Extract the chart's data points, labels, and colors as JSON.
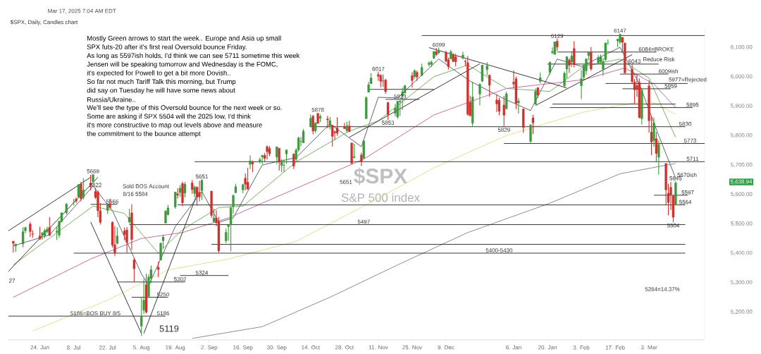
{
  "chart_data": {
    "type": "candlestick",
    "x": [
      "2024-06-13",
      "2024-06-14",
      "2024-06-17",
      "2024-06-18",
      "2024-06-20",
      "2024-06-21",
      "2024-06-24",
      "2024-06-25",
      "2024-06-26",
      "2024-06-27",
      "2024-06-28",
      "2024-07-01",
      "2024-07-02",
      "2024-07-03",
      "2024-07-05",
      "2024-07-08",
      "2024-07-09",
      "2024-07-10",
      "2024-07-11",
      "2024-07-12",
      "2024-07-15",
      "2024-07-16",
      "2024-07-17",
      "2024-07-18",
      "2024-07-19",
      "2024-07-22",
      "2024-07-23",
      "2024-07-24",
      "2024-07-25",
      "2024-07-26",
      "2024-07-29",
      "2024-07-30",
      "2024-07-31",
      "2024-08-01",
      "2024-08-02",
      "2024-08-05",
      "2024-08-06",
      "2024-08-07",
      "2024-08-08",
      "2024-08-09",
      "2024-08-12",
      "2024-08-13",
      "2024-08-14",
      "2024-08-15",
      "2024-08-16",
      "2024-08-19",
      "2024-08-20",
      "2024-08-21",
      "2024-08-22",
      "2024-08-23",
      "2024-08-26",
      "2024-08-27",
      "2024-08-28",
      "2024-08-29",
      "2024-08-30",
      "2024-09-03",
      "2024-09-04",
      "2024-09-05",
      "2024-09-06",
      "2024-09-09",
      "2024-09-10",
      "2024-09-11",
      "2024-09-12",
      "2024-09-13",
      "2024-09-16",
      "2024-09-17",
      "2024-09-18",
      "2024-09-19",
      "2024-09-20",
      "2024-09-23",
      "2024-09-24",
      "2024-09-25",
      "2024-09-26",
      "2024-09-27",
      "2024-09-30",
      "2024-10-01",
      "2024-10-02",
      "2024-10-03",
      "2024-10-04",
      "2024-10-07",
      "2024-10-08",
      "2024-10-09",
      "2024-10-10",
      "2024-10-11",
      "2024-10-14",
      "2024-10-15",
      "2024-10-16",
      "2024-10-17",
      "2024-10-18",
      "2024-10-21",
      "2024-10-22",
      "2024-10-23",
      "2024-10-24",
      "2024-10-25",
      "2024-10-28",
      "2024-10-29",
      "2024-10-30",
      "2024-10-31",
      "2024-11-01",
      "2024-11-04",
      "2024-11-05",
      "2024-11-06",
      "2024-11-07",
      "2024-11-08",
      "2024-11-11",
      "2024-11-12",
      "2024-11-13",
      "2024-11-14",
      "2024-11-15",
      "2024-11-18",
      "2024-11-19",
      "2024-11-20",
      "2024-11-21",
      "2024-11-22",
      "2024-11-25",
      "2024-11-26",
      "2024-11-27",
      "2024-11-29",
      "2024-12-02",
      "2024-12-03",
      "2024-12-04",
      "2024-12-05",
      "2024-12-06",
      "2024-12-09",
      "2024-12-10",
      "2024-12-11",
      "2024-12-12",
      "2024-12-13",
      "2024-12-16",
      "2024-12-17",
      "2024-12-18",
      "2024-12-19",
      "2024-12-20",
      "2024-12-23",
      "2024-12-24",
      "2024-12-26",
      "2024-12-27",
      "2024-12-30",
      "2024-12-31",
      "2025-01-02",
      "2025-01-03",
      "2025-01-06",
      "2025-01-07",
      "2025-01-08",
      "2025-01-10",
      "2025-01-13",
      "2025-01-14",
      "2025-01-15",
      "2025-01-16",
      "2025-01-17",
      "2025-01-21",
      "2025-01-22",
      "2025-01-23",
      "2025-01-24",
      "2025-01-27",
      "2025-01-28",
      "2025-01-29",
      "2025-01-30",
      "2025-01-31",
      "2025-02-03",
      "2025-02-04",
      "2025-02-05",
      "2025-02-06",
      "2025-02-07",
      "2025-02-10",
      "2025-02-11",
      "2025-02-12",
      "2025-02-13",
      "2025-02-14",
      "2025-02-18",
      "2025-02-19",
      "2025-02-20",
      "2025-02-21",
      "2025-02-24",
      "2025-02-25",
      "2025-02-26",
      "2025-02-27",
      "2025-02-28",
      "2025-03-03",
      "2025-03-04",
      "2025-03-05",
      "2025-03-06",
      "2025-03-07",
      "2025-03-10",
      "2025-03-11",
      "2025-03-12",
      "2025-03-13",
      "2025-03-14"
    ],
    "ohlc": [
      [
        5441,
        5441,
        5402,
        5433
      ],
      [
        5424,
        5432,
        5404,
        5431
      ],
      [
        5431,
        5488,
        5420,
        5473
      ],
      [
        5476,
        5490,
        5468,
        5487
      ],
      [
        5499,
        5506,
        5455,
        5473
      ],
      [
        5466,
        5478,
        5452,
        5464
      ],
      [
        5459,
        5490,
        5447,
        5447
      ],
      [
        5461,
        5472,
        5446,
        5469
      ],
      [
        5460,
        5483,
        5451,
        5477
      ],
      [
        5473,
        5490,
        5468,
        5482
      ],
      [
        5488,
        5523,
        5459,
        5460
      ],
      [
        5471,
        5489,
        5445,
        5475
      ],
      [
        5461,
        5510,
        5452,
        5509
      ],
      [
        5507,
        5539,
        5507,
        5537
      ],
      [
        5537,
        5571,
        5531,
        5567
      ],
      [
        5572,
        5584,
        5562,
        5572
      ],
      [
        5584,
        5590,
        5571,
        5577
      ],
      [
        5591,
        5635,
        5587,
        5633
      ],
      [
        5635,
        5642,
        5576,
        5585
      ],
      [
        5590,
        5655,
        5583,
        5615
      ],
      [
        5638,
        5666,
        5614,
        5631
      ],
      [
        5644,
        5669,
        5639,
        5667
      ],
      [
        5610,
        5622,
        5584,
        5589
      ],
      [
        5608,
        5614,
        5522,
        5544
      ],
      [
        5544,
        5570,
        5497,
        5505
      ],
      [
        5545,
        5567,
        5533,
        5564
      ],
      [
        5566,
        5585,
        5550,
        5555
      ],
      [
        5505,
        5508,
        5419,
        5427
      ],
      [
        5429,
        5491,
        5390,
        5400
      ],
      [
        5433,
        5488,
        5430,
        5459
      ],
      [
        5476,
        5487,
        5444,
        5463
      ],
      [
        5479,
        5489,
        5401,
        5436
      ],
      [
        5506,
        5551,
        5501,
        5522
      ],
      [
        5537,
        5566,
        5411,
        5446
      ],
      [
        5377,
        5383,
        5302,
        5347
      ],
      [
        5152,
        5250,
        5119,
        5186
      ],
      [
        5206,
        5312,
        5193,
        5240
      ],
      [
        5293,
        5330,
        5195,
        5199
      ],
      [
        5253,
        5328,
        5250,
        5319
      ],
      [
        5314,
        5358,
        5298,
        5344
      ],
      [
        5352,
        5371,
        5318,
        5344
      ],
      [
        5376,
        5436,
        5376,
        5434
      ],
      [
        5442,
        5463,
        5417,
        5455
      ],
      [
        5502,
        5546,
        5502,
        5543
      ],
      [
        5531,
        5564,
        5528,
        5554
      ],
      [
        5557,
        5608,
        5551,
        5608
      ],
      [
        5602,
        5621,
        5585,
        5597
      ],
      [
        5606,
        5632,
        5591,
        5621
      ],
      [
        5637,
        5643,
        5560,
        5571
      ],
      [
        5604,
        5642,
        5590,
        5635
      ],
      [
        5639,
        5649,
        5602,
        5616
      ],
      [
        5603,
        5631,
        5590,
        5625
      ],
      [
        5624,
        5628,
        5561,
        5592
      ],
      [
        5607,
        5646,
        5576,
        5591
      ],
      [
        5612,
        5651,
        5581,
        5648
      ],
      [
        5611,
        5612,
        5520,
        5528
      ],
      [
        5507,
        5551,
        5503,
        5520
      ],
      [
        5520,
        5546,
        5492,
        5503
      ],
      [
        5507,
        5523,
        5402,
        5408
      ],
      [
        5442,
        5484,
        5434,
        5471
      ],
      [
        5490,
        5497,
        5442,
        5496
      ],
      [
        5496,
        5560,
        5406,
        5554
      ],
      [
        5558,
        5600,
        5535,
        5596
      ],
      [
        5605,
        5636,
        5605,
        5626
      ],
      [
        5615,
        5636,
        5604,
        5633
      ],
      [
        5655,
        5671,
        5614,
        5634
      ],
      [
        5641,
        5690,
        5615,
        5618
      ],
      [
        5702,
        5733,
        5686,
        5714
      ],
      [
        5709,
        5715,
        5675,
        5703
      ],
      [
        5712,
        5725,
        5705,
        5718
      ],
      [
        5727,
        5735,
        5703,
        5732
      ],
      [
        5733,
        5741,
        5712,
        5722
      ],
      [
        5762,
        5767,
        5719,
        5745
      ],
      [
        5756,
        5764,
        5730,
        5738
      ],
      [
        5727,
        5763,
        5703,
        5762
      ],
      [
        5757,
        5757,
        5681,
        5709
      ],
      [
        5698,
        5720,
        5675,
        5709
      ],
      [
        5698,
        5718,
        5675,
        5699
      ],
      [
        5737,
        5753,
        5704,
        5751
      ],
      [
        5737,
        5740,
        5686,
        5696
      ],
      [
        5719,
        5757,
        5713,
        5751
      ],
      [
        5751,
        5796,
        5745,
        5792
      ],
      [
        5779,
        5795,
        5764,
        5780
      ],
      [
        5775,
        5822,
        5775,
        5815
      ],
      [
        5829,
        5871,
        5829,
        5859
      ],
      [
        5866,
        5870,
        5804,
        5815
      ],
      [
        5816,
        5846,
        5809,
        5842
      ],
      [
        5875,
        5878,
        5840,
        5841
      ],
      [
        5859,
        5872,
        5846,
        5865
      ],
      [
        5857,
        5867,
        5825,
        5853
      ],
      [
        5833,
        5863,
        5821,
        5851
      ],
      [
        5835,
        5835,
        5763,
        5797
      ],
      [
        5813,
        5817,
        5784,
        5809
      ],
      [
        5826,
        5862,
        5799,
        5808
      ],
      [
        5830,
        5843,
        5822,
        5823
      ],
      [
        5816,
        5847,
        5810,
        5833
      ],
      [
        5833,
        5850,
        5813,
        5813
      ],
      [
        5775,
        5776,
        5703,
        5705
      ],
      [
        5724,
        5772,
        5723,
        5728
      ],
      [
        5734,
        5742,
        5696,
        5712
      ],
      [
        5722,
        5783,
        5722,
        5782
      ],
      [
        5857,
        5933,
        5857,
        5929
      ],
      [
        5947,
        5983,
        5947,
        5973
      ],
      [
        5976,
        6012,
        5976,
        5996
      ],
      [
        6008,
        6017,
        5986,
        6001
      ],
      [
        6004,
        6009,
        5964,
        5984
      ],
      [
        5986,
        6008,
        5965,
        5985
      ],
      [
        5989,
        5993,
        5942,
        5949
      ],
      [
        5912,
        5915,
        5853,
        5871
      ],
      [
        5876,
        5908,
        5866,
        5894
      ],
      [
        5863,
        5917,
        5857,
        5917
      ],
      [
        5914,
        5921,
        5867,
        5917
      ],
      [
        5934,
        5963,
        5887,
        5949
      ],
      [
        5944,
        5973,
        5944,
        5969
      ],
      [
        6004,
        6015,
        5963,
        5987
      ],
      [
        6000,
        6025,
        5993,
        6021
      ],
      [
        6015,
        6021,
        5986,
        5999
      ],
      [
        6004,
        6044,
        6003,
        6032
      ],
      [
        6041,
        6053,
        6035,
        6047
      ],
      [
        6042,
        6055,
        6033,
        6050
      ],
      [
        6063,
        6087,
        6060,
        6086
      ],
      [
        6086,
        6098,
        6070,
        6075
      ],
      [
        6081,
        6099,
        6077,
        6090
      ],
      [
        6083,
        6089,
        6048,
        6053
      ],
      [
        6058,
        6065,
        6024,
        6034
      ],
      [
        6060,
        6092,
        6060,
        6085
      ],
      [
        6074,
        6080,
        6051,
        6051
      ],
      [
        6068,
        6078,
        6035,
        6051
      ],
      [
        6063,
        6085,
        6059,
        6074
      ],
      [
        6053,
        6058,
        6036,
        6051
      ],
      [
        6048,
        6071,
        5867,
        5872
      ],
      [
        5913,
        5936,
        5866,
        5867
      ],
      [
        5842,
        5982,
        5832,
        5931
      ],
      [
        5941,
        5978,
        5903,
        5974
      ],
      [
        5985,
        6040,
        5981,
        6040
      ],
      [
        6024,
        6050,
        6004,
        6037
      ],
      [
        6006,
        6006,
        5932,
        5971
      ],
      [
        5921,
        5941,
        5880,
        5907
      ],
      [
        5920,
        5929,
        5869,
        5882
      ],
      [
        5904,
        5935,
        5829,
        5869
      ],
      [
        5891,
        5949,
        5888,
        5942
      ],
      [
        5982,
        6021,
        5961,
        5975
      ],
      [
        5993,
        6000,
        5890,
        5909
      ],
      [
        5911,
        5927,
        5875,
        5918
      ],
      [
        5891,
        5891,
        5809,
        5827
      ],
      [
        5780,
        5838,
        5773,
        5836
      ],
      [
        5860,
        5870,
        5805,
        5843
      ],
      [
        5906,
        5960,
        5906,
        5950
      ],
      [
        5963,
        5964,
        5928,
        5937
      ],
      [
        5984,
        6014,
        5978,
        5997
      ],
      [
        6014,
        6052,
        6007,
        6049
      ],
      [
        6082,
        6100,
        6076,
        6086
      ],
      [
        6076,
        6119,
        6075,
        6119
      ],
      [
        6121,
        6129,
        6088,
        6101
      ],
      [
        5969,
        6018,
        5962,
        6012
      ],
      [
        6026,
        6070,
        5994,
        6068
      ],
      [
        6057,
        6063,
        6013,
        6039
      ],
      [
        6050,
        6087,
        6033,
        6071
      ],
      [
        6096,
        6121,
        6031,
        6041
      ],
      [
        5969,
        6022,
        5924,
        5994
      ],
      [
        5998,
        6042,
        5990,
        6037
      ],
      [
        6020,
        6062,
        6007,
        6061
      ],
      [
        6072,
        6084,
        6055,
        6083
      ],
      [
        6083,
        6101,
        6020,
        6026
      ],
      [
        6047,
        6073,
        6044,
        6066
      ],
      [
        6050,
        6076,
        6042,
        6068
      ],
      [
        6025,
        6063,
        6003,
        6052
      ],
      [
        6058,
        6116,
        6052,
        6115
      ],
      [
        6115,
        6127,
        6108,
        6115
      ],
      [
        6122,
        6128,
        6100,
        6128
      ],
      [
        6117,
        6147,
        6111,
        6144
      ],
      [
        6134,
        6134,
        6084,
        6117
      ],
      [
        6115,
        6115,
        6009,
        6013
      ],
      [
        6026,
        6043,
        5977,
        5983
      ],
      [
        5982,
        5992,
        5909,
        5955
      ],
      [
        5970,
        6009,
        5932,
        5956
      ],
      [
        5981,
        5994,
        5858,
        5861
      ],
      [
        5857,
        5959,
        5837,
        5955
      ],
      [
        5969,
        5987,
        5810,
        5850
      ],
      [
        5812,
        5866,
        5733,
        5778
      ],
      [
        5782,
        5861,
        5762,
        5843
      ],
      [
        5789,
        5812,
        5711,
        5739
      ],
      [
        5726,
        5783,
        5667,
        5770
      ],
      [
        5705,
        5706,
        5565,
        5615
      ],
      [
        5604,
        5636,
        5529,
        5572
      ],
      [
        5624,
        5642,
        5547,
        5599
      ],
      [
        5595,
        5597,
        5504,
        5522
      ],
      [
        5563,
        5645,
        5563,
        5639
      ]
    ],
    "xlim": [
      "2024-06-11",
      "2025-03-26"
    ],
    "xticks": [
      {
        "value": "2024-06-24",
        "label": "24. Jun"
      },
      {
        "value": "2024-07-08",
        "label": "8. Jul"
      },
      {
        "value": "2024-07-22",
        "label": "22. Jul"
      },
      {
        "value": "2024-08-05",
        "label": "5. Aug"
      },
      {
        "value": "2024-08-19",
        "label": "19. Aug"
      },
      {
        "value": "2024-09-02",
        "label": "2. Sep"
      },
      {
        "value": "2024-09-16",
        "label": "16. Sep"
      },
      {
        "value": "2024-09-30",
        "label": "30. Sep"
      },
      {
        "value": "2024-10-14",
        "label": "14. Oct"
      },
      {
        "value": "2024-10-28",
        "label": "28. Oct"
      },
      {
        "value": "2024-11-11",
        "label": "11. Nov"
      },
      {
        "value": "2024-11-25",
        "label": "25. Nov"
      },
      {
        "value": "2024-12-09",
        "label": "9. Dec"
      },
      {
        "value": "2025-01-06",
        "label": "6. Jan"
      },
      {
        "value": "2025-01-20",
        "label": "20. Jan"
      },
      {
        "value": "2025-02-03",
        "label": "3. Feb"
      },
      {
        "value": "2025-02-17",
        "label": "17. Feb"
      },
      {
        "value": "2025-03-03",
        "label": "3. Mar"
      }
    ],
    "ylim": [
      5105,
      6165
    ],
    "yticks": [
      {
        "value": 5200,
        "label": "5,200.00"
      },
      {
        "value": 5300,
        "label": "5,300.00"
      },
      {
        "value": 5400,
        "label": "5,400.00"
      },
      {
        "value": 5500,
        "label": "5,500.00"
      },
      {
        "value": 5600,
        "label": "5,600.00"
      },
      {
        "value": 5700,
        "label": "5,700.00"
      },
      {
        "value": 5800,
        "label": "5,800.00"
      },
      {
        "value": 5900,
        "label": "5,900.00"
      },
      {
        "value": 6000,
        "label": "6,000.00"
      },
      {
        "value": 6100,
        "label": "6,100.00"
      }
    ],
    "series": [
      {
        "type": "line",
        "color": "#4d5160",
        "x": [
          "2024-06-13",
          "2024-06-28",
          "2024-07-16",
          "2024-07-24",
          "2024-08-05",
          "2024-08-08",
          "2024-08-19",
          "2024-08-30",
          "2024-09-06",
          "2024-09-12",
          "2024-09-24",
          "2024-10-08",
          "2024-10-22",
          "2024-11-04",
          "2024-11-11",
          "2024-11-19",
          "2024-12-06",
          "2024-12-19",
          "2025-01-02",
          "2025-01-13",
          "2025-01-24",
          "2025-02-03",
          "2025-02-19",
          "2025-02-27",
          "2025-03-07",
          "2025-03-14"
        ],
        "values": [
          5425,
          5462,
          5628,
          5545,
          5330,
          5290,
          5490,
          5610,
          5505,
          5520,
          5700,
          5725,
          5840,
          5762,
          5930,
          5928,
          6060,
          5985,
          5925,
          5885,
          6060,
          6035,
          6100,
          5975,
          5800,
          5655
        ]
      },
      {
        "type": "line",
        "color": "#6aa84f",
        "x": [
          "2024-06-13",
          "2024-07-16",
          "2024-07-29",
          "2024-08-12",
          "2024-08-22",
          "2024-09-06",
          "2024-09-16",
          "2024-10-08",
          "2024-10-30",
          "2024-11-11",
          "2024-12-04",
          "2024-12-18",
          "2025-01-03",
          "2025-01-21",
          "2025-02-04",
          "2025-02-19",
          "2025-03-03",
          "2025-03-14"
        ],
        "values": [
          5360,
          5560,
          5535,
          5400,
          5480,
          5555,
          5560,
          5710,
          5815,
          5850,
          6000,
          6040,
          5960,
          5950,
          6035,
          6060,
          5995,
          5794
        ]
      },
      {
        "type": "line",
        "color": "#c45c9a",
        "x": [
          "2024-06-13",
          "2024-07-15",
          "2024-08-05",
          "2024-08-22",
          "2024-09-10",
          "2024-10-08",
          "2024-11-05",
          "2024-12-04",
          "2025-01-03",
          "2025-02-04",
          "2025-02-21",
          "2025-03-05",
          "2025-03-14"
        ],
        "values": [
          5250,
          5380,
          5450,
          5470,
          5520,
          5620,
          5720,
          5870,
          5960,
          5990,
          6030,
          5975,
          5895
        ]
      },
      {
        "type": "line",
        "color": "#e3d98a",
        "x": [
          "2024-06-21",
          "2024-07-22",
          "2024-08-16",
          "2024-09-10",
          "2024-10-08",
          "2024-11-05",
          "2024-12-04",
          "2025-01-03",
          "2025-02-04",
          "2025-03-03",
          "2025-03-14"
        ],
        "values": [
          5135,
          5240,
          5343,
          5380,
          5440,
          5560,
          5690,
          5800,
          5880,
          5920,
          5872
        ]
      },
      {
        "type": "line",
        "color": "#808080",
        "x": [
          "2024-08-26",
          "2024-09-24",
          "2024-10-22",
          "2024-11-19",
          "2024-12-18",
          "2025-01-21",
          "2025-02-19",
          "2025-03-14"
        ],
        "values": [
          5110,
          5150,
          5250,
          5360,
          5470,
          5570,
          5670,
          5705
        ]
      },
      {
        "type": "line",
        "color": "#222222",
        "x": [
          "2024-06-11",
          "2024-07-15"
        ],
        "values": [
          5476,
          5658
        ]
      },
      {
        "type": "line",
        "color": "#222222",
        "x": [
          "2024-06-11",
          "2024-07-18"
        ],
        "values": [
          5338,
          5658
        ]
      },
      {
        "type": "line",
        "color": "#222222",
        "x": [
          "2024-07-15",
          "2024-08-05"
        ],
        "values": [
          5506,
          5127
        ]
      },
      {
        "type": "line",
        "color": "#222222",
        "x": [
          "2024-08-06",
          "2024-08-28"
        ],
        "values": [
          5127,
          5600
        ]
      },
      {
        "type": "line",
        "color": "#222222",
        "x": [
          "2024-06-11",
          "2024-08-15"
        ],
        "values": [
          5186,
          5186
        ]
      },
      {
        "type": "line",
        "color": "#222222",
        "x": [
          "2024-08-01",
          "2024-08-16"
        ],
        "values": [
          5250,
          5250
        ]
      },
      {
        "type": "line",
        "color": "#222222",
        "x": [
          "2024-07-26",
          "2024-08-23"
        ],
        "values": [
          5302,
          5302
        ]
      },
      {
        "type": "line",
        "color": "#222222",
        "x": [
          "2024-08-21",
          "2024-09-10"
        ],
        "values": [
          5324,
          5324
        ]
      },
      {
        "type": "line",
        "color": "#222222",
        "x": [
          "2024-07-15",
          "2024-07-26"
        ],
        "values": [
          5566,
          5566
        ]
      },
      {
        "type": "line",
        "color": "#222222",
        "x": [
          "2024-07-08",
          "2025-03-18"
        ],
        "values": [
          5400,
          5400
        ]
      },
      {
        "type": "line",
        "color": "#222222",
        "x": [
          "2024-09-03",
          "2025-03-18"
        ],
        "values": [
          5430,
          5430
        ]
      },
      {
        "type": "line",
        "color": "#222222",
        "x": [
          "2024-07-31",
          "2025-03-18"
        ],
        "values": [
          5497,
          5497
        ]
      },
      {
        "type": "line",
        "color": "#222222",
        "x": [
          "2024-08-20",
          "2025-03-18"
        ],
        "values": [
          5564,
          5564
        ]
      },
      {
        "type": "line",
        "color": "#222222",
        "x": [
          "2024-08-27",
          "2025-03-26"
        ],
        "values": [
          5711,
          5711
        ]
      },
      {
        "type": "line",
        "color": "#222222",
        "x": [
          "2024-10-14",
          "2025-03-18"
        ],
        "values": [
          5830,
          5830
        ]
      },
      {
        "type": "line",
        "color": "#222222",
        "x": [
          "2024-11-07",
          "2024-12-04"
        ],
        "values": [
          5957,
          5957
        ]
      },
      {
        "type": "line",
        "color": "#222222",
        "x": [
          "2024-11-14",
          "2024-11-28"
        ],
        "values": [
          5923,
          5923
        ]
      },
      {
        "type": "line",
        "color": "#222222",
        "x": [
          "2024-11-29",
          "2025-03-26"
        ],
        "values": [
          6140,
          6140
        ]
      },
      {
        "type": "line",
        "color": "#222222",
        "x": [
          "2024-12-02",
          "2025-01-28"
        ],
        "values": [
          6099,
          5962
        ]
      },
      {
        "type": "line",
        "color": "#222222",
        "x": [
          "2024-10-30",
          "2024-12-23"
        ],
        "values": [
          5794,
          6044
        ]
      },
      {
        "type": "line",
        "color": "#222222",
        "x": [
          "2025-01-15",
          "2025-02-24"
        ],
        "values": [
          5902,
          6075
        ]
      },
      {
        "type": "line",
        "color": "#222222",
        "x": [
          "2025-01-24",
          "2025-03-06"
        ],
        "values": [
          6084,
          6084
        ]
      },
      {
        "type": "line",
        "color": "#222222",
        "x": [
          "2025-01-20",
          "2025-03-07"
        ],
        "values": [
          6043,
          6043
        ]
      },
      {
        "type": "line",
        "color": "#222222",
        "x": [
          "2025-02-19",
          "2025-03-11"
        ],
        "values": [
          6009,
          6009
        ]
      },
      {
        "type": "line",
        "color": "#222222",
        "x": [
          "2025-02-13",
          "2025-03-19"
        ],
        "values": [
          5977,
          5977
        ]
      },
      {
        "type": "line",
        "color": "#222222",
        "x": [
          "2025-02-20",
          "2025-03-12"
        ],
        "values": [
          5959,
          5959
        ]
      },
      {
        "type": "line",
        "color": "#222222",
        "x": [
          "2025-01-22",
          "2025-03-14"
        ],
        "values": [
          5907,
          5907
        ]
      },
      {
        "type": "line",
        "color": "#222222",
        "x": [
          "2025-01-21",
          "2025-03-21"
        ],
        "values": [
          5895,
          5895
        ]
      },
      {
        "type": "line",
        "color": "#222222",
        "x": [
          "2025-01-02",
          "2025-03-26"
        ],
        "values": [
          5773,
          5773
        ]
      },
      {
        "type": "line",
        "color": "#222222",
        "x": [
          "2025-03-05",
          "2025-03-19"
        ],
        "values": [
          5597,
          5597
        ]
      }
    ],
    "annotations": [
      "Mar 17, 2025 7:04 AM EDT",
      "$SPX, Daily, Candles chart",
      "Mostly Green arrows to start the week.. Europe and Asia up small",
      "SPX futs-20 after it's first real Oversold bounce Friday.",
      "As long as 5597ish holds, I'd think we can see 5711 sometime this week",
      "Jensen will be speaking tomorrow and Wednesday is the FOMC,",
      "it's expected for Powell to get a bit more Dovish..",
      "So far not much Tariff Talk this morning, but Trump",
      "did say on Tuesday he will have some news about",
      "Russia/Ukraine..",
      "We'll see the type of this Oversold bounce for the next week or so.",
      "Some are asking if SPX 5504 will the 2025 low, I'd think",
      "it's more constructive to map out levels above and measure",
      "the commitment to the bounce attempt",
      "$SPX",
      "S&P 500 index",
      "Sold BOS Account",
      "8/16 5584",
      "5119",
      "27",
      "5651",
      "Reduce Risk",
      "5670ish",
      "5264=14.37%",
      "5,638.94",
      {
        "text": "5669",
        "x": "2024-07-16",
        "y": 5669
      },
      {
        "text": "5622",
        "x": "2024-07-17",
        "y": 5622
      },
      {
        "text": "5566",
        "x": "2024-07-24",
        "y": 5566
      },
      {
        "text": "5651",
        "x": "2024-08-30",
        "y": 5651
      },
      {
        "text": "5186=BOS BUY 8/5",
        "x": "2024-07-17",
        "y": 5186
      },
      {
        "text": "5186",
        "x": "2024-08-14",
        "y": 5186
      },
      {
        "text": "5250",
        "x": "2024-08-14",
        "y": 5250
      },
      {
        "text": "5302",
        "x": "2024-08-21",
        "y": 5302
      },
      {
        "text": "5324",
        "x": "2024-08-30",
        "y": 5324
      },
      {
        "text": "5497",
        "x": "2024-11-05",
        "y": 5497
      },
      {
        "text": "5400-5430",
        "x": "2024-12-31",
        "y": 5400
      },
      {
        "text": "5878",
        "x": "2024-10-17",
        "y": 5878
      },
      {
        "text": "5853",
        "x": "2024-11-15",
        "y": 5853
      },
      {
        "text": "6017",
        "x": "2024-11-11",
        "y": 6017
      },
      {
        "text": "5923",
        "x": "2024-11-20",
        "y": 5923
      },
      {
        "text": "6099",
        "x": "2024-12-06",
        "y": 6099
      },
      {
        "text": "5829",
        "x": "2025-01-02",
        "y": 5829
      },
      {
        "text": "6129",
        "x": "2025-01-24",
        "y": 6129
      },
      {
        "text": "6147",
        "x": "2025-02-19",
        "y": 6147
      },
      {
        "text": "6084=BROKE",
        "x": "2025-03-06",
        "y": 6084
      },
      {
        "text": "6043",
        "x": "2025-02-25",
        "y": 6043
      },
      {
        "text": "6009ish",
        "x": "2025-03-11",
        "y": 6009
      },
      {
        "text": "5977=Rejected",
        "x": "2025-03-19",
        "y": 5977
      },
      {
        "text": "5959",
        "x": "2025-03-12",
        "y": 5959
      },
      {
        "text": "5895",
        "x": "2025-03-21",
        "y": 5895
      },
      {
        "text": "5830",
        "x": "2025-03-18",
        "y": 5830
      },
      {
        "text": "5773",
        "x": "2025-03-20",
        "y": 5773
      },
      {
        "text": "5711",
        "x": "2025-03-21",
        "y": 5711
      },
      {
        "text": "5645",
        "x": "2025-03-14",
        "y": 5645
      },
      {
        "text": "5597",
        "x": "2025-03-19",
        "y": 5597
      },
      {
        "text": "5564",
        "x": "2025-03-18",
        "y": 5564
      },
      {
        "text": "5504",
        "x": "2025-03-13",
        "y": 5504
      }
    ]
  }
}
